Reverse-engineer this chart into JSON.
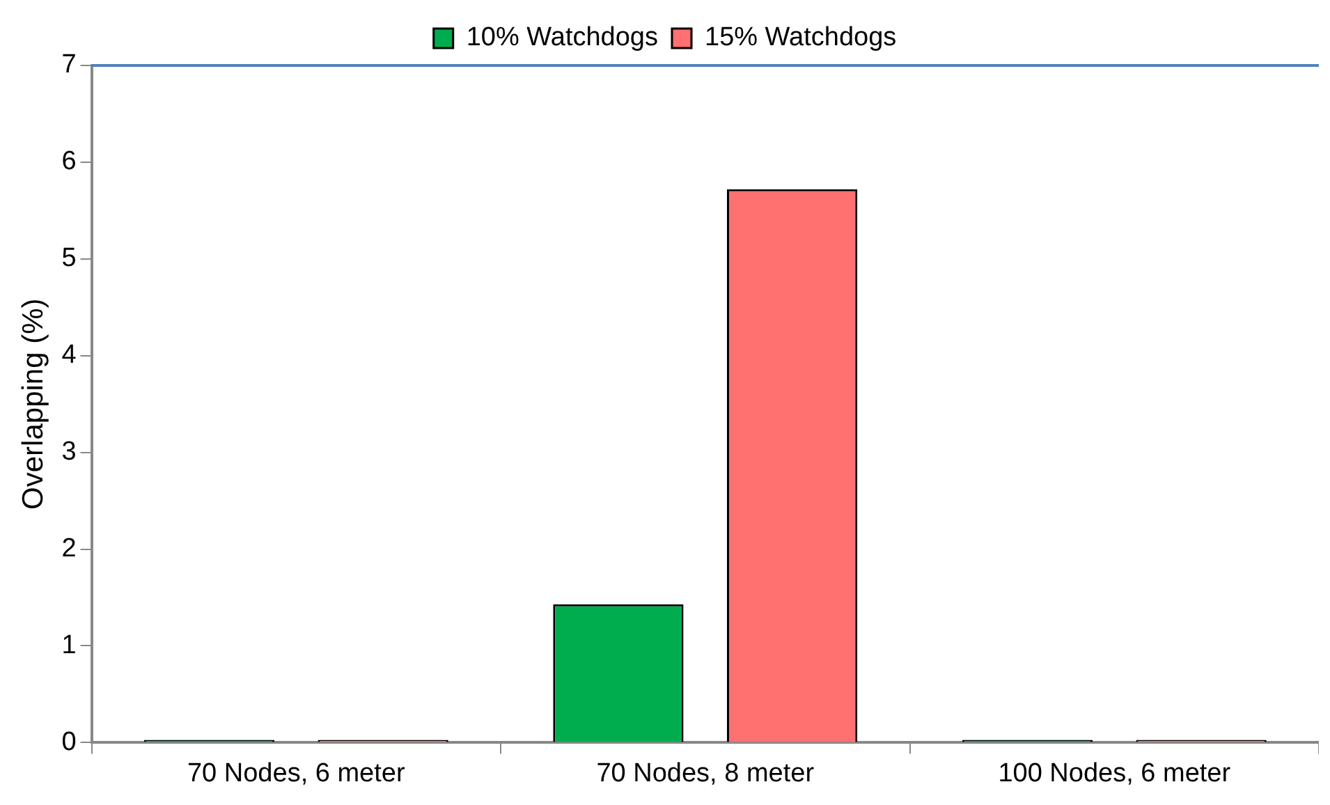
{
  "chart_data": {
    "type": "bar",
    "categories": [
      "70 Nodes, 6 meter",
      "70 Nodes, 8 meter",
      "100 Nodes, 6 meter"
    ],
    "series": [
      {
        "name": "10% Watchdogs",
        "color": "#00ad4e",
        "values": [
          0,
          1.43,
          0
        ]
      },
      {
        "name": "15% Watchdogs",
        "color": "#ff7070",
        "values": [
          0,
          5.72,
          0
        ]
      }
    ],
    "ylabel": "Overlapping (%)",
    "ylim": [
      0,
      7
    ],
    "yticks": [
      0,
      1,
      2,
      3,
      4,
      5,
      6,
      7
    ],
    "grid": false,
    "legend": "top",
    "ref_lines": [
      {
        "axis": "y",
        "value": 7,
        "color": "#4f81bd"
      }
    ]
  }
}
